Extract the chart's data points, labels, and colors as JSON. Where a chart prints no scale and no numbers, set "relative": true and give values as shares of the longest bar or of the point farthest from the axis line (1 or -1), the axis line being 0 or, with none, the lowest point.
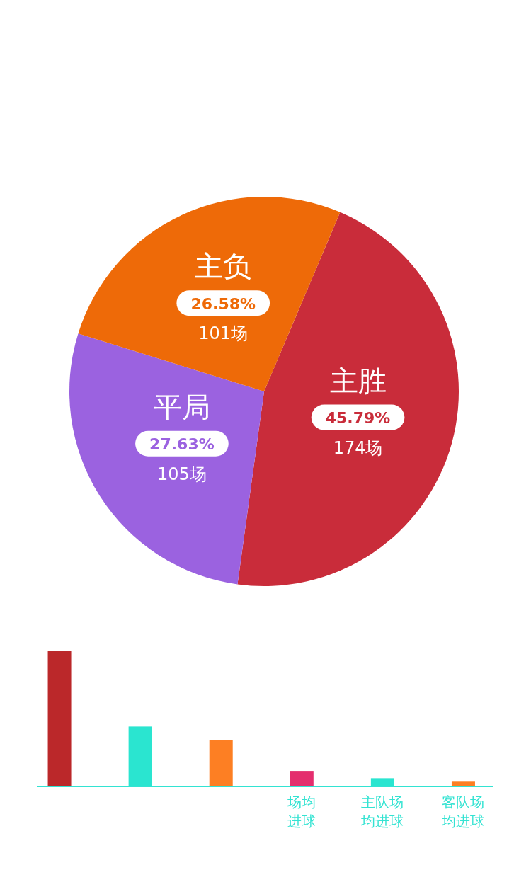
{
  "chart_data": [
    {
      "type": "pie",
      "categories": [
        "主胜",
        "平局",
        "主负"
      ],
      "values": [
        45.79,
        27.63,
        26.58
      ],
      "colors": [
        "#c92c3a",
        "#9b62e0",
        "#ee6a08"
      ],
      "value_labels": [
        "45.79%",
        "27.63%",
        "26.58%"
      ],
      "annotations": [
        "174场",
        "105场",
        "101场"
      ]
    },
    {
      "type": "bar",
      "relative": true,
      "categories": [
        null,
        null,
        null,
        "场均进球",
        "主队场均进球",
        "客队场均进球"
      ],
      "values": [
        1,
        0.44,
        0.34,
        0.11,
        0.056,
        0.03
      ],
      "colors": [
        "#bb282a",
        "#2ae5d0",
        "#fd7f23",
        "#e42e6e",
        "#2ae5d0",
        "#fd7f23"
      ]
    }
  ]
}
